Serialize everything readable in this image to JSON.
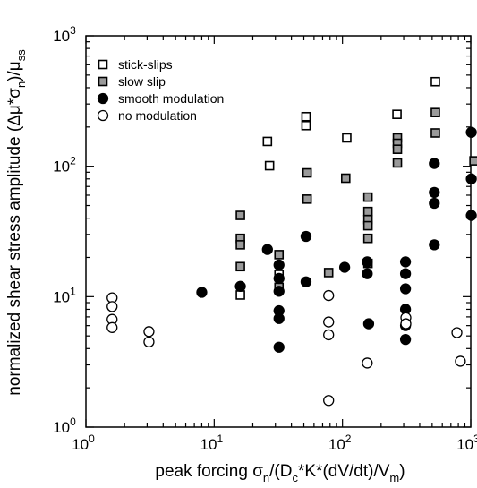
{
  "chart_data": {
    "type": "scatter",
    "x_scale": "log",
    "y_scale": "log",
    "xlim": [
      1,
      1000
    ],
    "ylim": [
      1,
      1000
    ],
    "grid": false,
    "legend_position": "top-left",
    "x_ticks": [
      {
        "value": 1,
        "base": "10",
        "exp": "0"
      },
      {
        "value": 10,
        "base": "10",
        "exp": "1"
      },
      {
        "value": 100,
        "base": "10",
        "exp": "2"
      },
      {
        "value": 1000,
        "base": "10",
        "exp": "3"
      }
    ],
    "y_ticks": [
      {
        "value": 1,
        "base": "10",
        "exp": "0"
      },
      {
        "value": 10,
        "base": "10",
        "exp": "1"
      },
      {
        "value": 100,
        "base": "10",
        "exp": "2"
      },
      {
        "value": 1000,
        "base": "10",
        "exp": "3"
      }
    ],
    "xlabel": {
      "main": "peak forcing σ",
      "sub1": "n",
      "mid1": "/(D",
      "sub2": "c",
      "mid2": "*K*(dV/dt)/V",
      "sub3": "m",
      "end": ")"
    },
    "ylabel": {
      "main": "normalized shear stress amplitude (Δμ*σ",
      "sub1": "n",
      "mid1": ")/μ",
      "sub2": "ss"
    },
    "series": [
      {
        "name": "stick-slips",
        "marker": "open-square",
        "points": [
          [
            16,
            10.3
          ],
          [
            26,
            155
          ],
          [
            27,
            101
          ],
          [
            32,
            14.8
          ],
          [
            52,
            240
          ],
          [
            52,
            205
          ],
          [
            108,
            165
          ],
          [
            266,
            250
          ],
          [
            530,
            445
          ]
        ]
      },
      {
        "name": "slow slip",
        "marker": "gray-square",
        "points": [
          [
            16,
            42
          ],
          [
            16,
            28
          ],
          [
            16,
            25
          ],
          [
            16,
            17
          ],
          [
            32,
            21
          ],
          [
            32,
            11.8
          ],
          [
            53,
            89
          ],
          [
            53,
            56
          ],
          [
            78,
            15.3
          ],
          [
            106,
            81
          ],
          [
            158,
            58
          ],
          [
            158,
            45
          ],
          [
            158,
            39
          ],
          [
            158,
            35
          ],
          [
            158,
            28
          ],
          [
            158,
            18
          ],
          [
            268,
            165
          ],
          [
            268,
            150
          ],
          [
            268,
            135
          ],
          [
            268,
            106
          ],
          [
            530,
            258
          ],
          [
            530,
            180
          ],
          [
            1060,
            110
          ]
        ]
      },
      {
        "name": "smooth modulation",
        "marker": "filled-circle",
        "points": [
          [
            8,
            10.8
          ],
          [
            16,
            12
          ],
          [
            26,
            23
          ],
          [
            32,
            17.5
          ],
          [
            32,
            13.8
          ],
          [
            32,
            11
          ],
          [
            32,
            7.8
          ],
          [
            32,
            6.8
          ],
          [
            32,
            4.1
          ],
          [
            52,
            29
          ],
          [
            52,
            13
          ],
          [
            104,
            16.8
          ],
          [
            156,
            18.5
          ],
          [
            156,
            15
          ],
          [
            160,
            6.2
          ],
          [
            310,
            18.5
          ],
          [
            310,
            15
          ],
          [
            310,
            11.5
          ],
          [
            310,
            8
          ],
          [
            310,
            6
          ],
          [
            310,
            4.7
          ],
          [
            520,
            105
          ],
          [
            520,
            63
          ],
          [
            520,
            52
          ],
          [
            520,
            25
          ],
          [
            1010,
            182
          ],
          [
            1010,
            80
          ],
          [
            1010,
            42
          ]
        ]
      },
      {
        "name": "no modulation",
        "marker": "open-circle",
        "points": [
          [
            1.6,
            9.8
          ],
          [
            1.6,
            8.4
          ],
          [
            1.6,
            6.7
          ],
          [
            1.6,
            5.8
          ],
          [
            3.1,
            5.4
          ],
          [
            3.1,
            4.5
          ],
          [
            78,
            10.2
          ],
          [
            78,
            6.4
          ],
          [
            78,
            5.1
          ],
          [
            78,
            1.6
          ],
          [
            156,
            3.1
          ],
          [
            312,
            6.9
          ],
          [
            312,
            6.2
          ],
          [
            780,
            5.3
          ],
          [
            830,
            3.2
          ]
        ]
      }
    ]
  }
}
